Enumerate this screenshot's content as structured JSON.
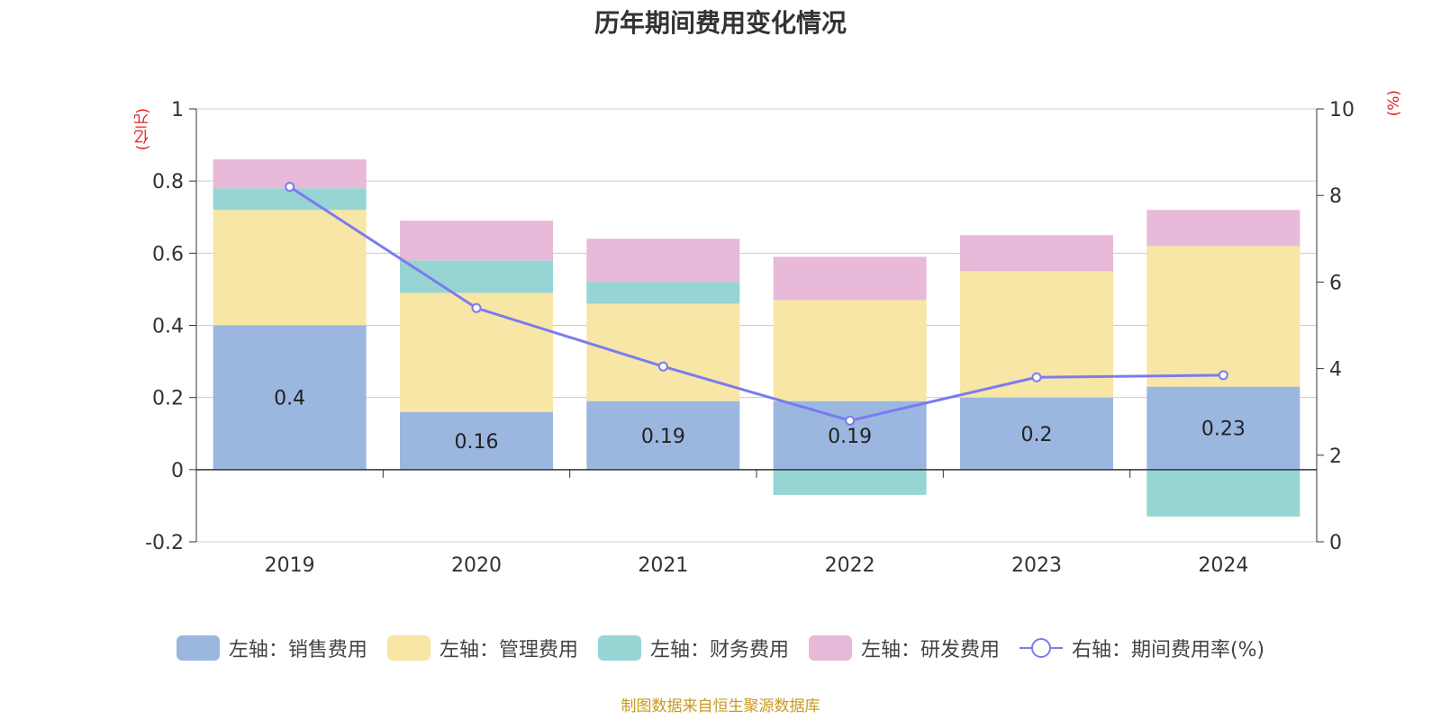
{
  "chart_data": {
    "type": "bar",
    "title": "历年期间费用变化情况",
    "categories": [
      "2019",
      "2020",
      "2021",
      "2022",
      "2023",
      "2024"
    ],
    "y_left_unit": "(亿元)",
    "y_right_unit": "(%)",
    "y_left_range": [
      -0.2,
      1
    ],
    "y_left_ticks": [
      "-0.2",
      "0",
      "0.2",
      "0.4",
      "0.6",
      "0.8",
      "1"
    ],
    "y_right_range": [
      0,
      10
    ],
    "y_right_ticks": [
      "0",
      "2",
      "4",
      "6",
      "8",
      "10"
    ],
    "grid": true,
    "legend_position": "bottom",
    "series": [
      {
        "name": "左轴：销售费用",
        "axis": "left",
        "type": "bar",
        "color": "#9bb7e0",
        "values": [
          0.4,
          0.16,
          0.19,
          0.19,
          0.2,
          0.23
        ],
        "data_labels": [
          "0.4",
          "0.16",
          "0.19",
          "0.19",
          "0.2",
          "0.23"
        ]
      },
      {
        "name": "左轴：管理费用",
        "axis": "left",
        "type": "bar",
        "color": "#f7e6a6",
        "values": [
          0.32,
          0.33,
          0.27,
          0.28,
          0.35,
          0.39
        ]
      },
      {
        "name": "左轴：财务费用",
        "axis": "left",
        "type": "bar",
        "color": "#97d4d4",
        "values": [
          0.06,
          0.09,
          0.06,
          -0.07,
          0.0,
          -0.13
        ]
      },
      {
        "name": "左轴：研发费用",
        "axis": "left",
        "type": "bar",
        "color": "#e8b9d8",
        "values": [
          0.08,
          0.11,
          0.12,
          0.12,
          0.1,
          0.1
        ]
      },
      {
        "name": "右轴：期间费用率(%)",
        "axis": "right",
        "type": "line",
        "color": "#7b7bf0",
        "values": [
          8.2,
          5.4,
          4.05,
          2.8,
          3.8,
          3.85
        ]
      }
    ]
  },
  "source_note": "制图数据来自恒生聚源数据库"
}
